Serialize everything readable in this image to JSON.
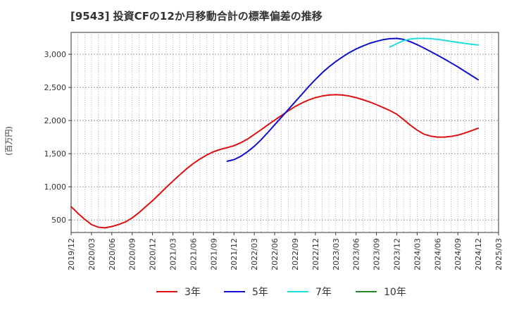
{
  "chart_data": {
    "type": "line",
    "title": "[9543]  投資CFの12か月移動合計の標準偏差の推移",
    "ylabel": "(百万円)",
    "ylim": [
      310,
      3330
    ],
    "yticks": [
      500,
      1000,
      1500,
      2000,
      2500,
      3000
    ],
    "ytick_labels": [
      "500",
      "1,000",
      "1,500",
      "2,000",
      "2,500",
      "3,000"
    ],
    "xticks": [
      "2019/12",
      "2020/03",
      "2020/06",
      "2020/09",
      "2020/12",
      "2021/03",
      "2021/06",
      "2021/09",
      "2021/12",
      "2022/03",
      "2022/06",
      "2022/09",
      "2022/12",
      "2023/03",
      "2023/06",
      "2023/09",
      "2023/12",
      "2024/03",
      "2024/06",
      "2024/09",
      "2024/12",
      "2025/03"
    ],
    "grid": true,
    "legend_position": "bottom",
    "series": [
      {
        "name": "3年",
        "color": "#dd1111",
        "points": [
          [
            "2019/12",
            700
          ],
          [
            "2020/01",
            600
          ],
          [
            "2020/02",
            510
          ],
          [
            "2020/03",
            430
          ],
          [
            "2020/04",
            390
          ],
          [
            "2020/05",
            380
          ],
          [
            "2020/06",
            400
          ],
          [
            "2020/07",
            430
          ],
          [
            "2020/08",
            470
          ],
          [
            "2020/09",
            530
          ],
          [
            "2020/10",
            610
          ],
          [
            "2020/11",
            700
          ],
          [
            "2020/12",
            790
          ],
          [
            "2021/01",
            890
          ],
          [
            "2021/02",
            990
          ],
          [
            "2021/03",
            1085
          ],
          [
            "2021/04",
            1180
          ],
          [
            "2021/05",
            1270
          ],
          [
            "2021/06",
            1350
          ],
          [
            "2021/07",
            1420
          ],
          [
            "2021/08",
            1480
          ],
          [
            "2021/09",
            1530
          ],
          [
            "2021/10",
            1565
          ],
          [
            "2021/11",
            1590
          ],
          [
            "2021/12",
            1620
          ],
          [
            "2022/01",
            1665
          ],
          [
            "2022/02",
            1720
          ],
          [
            "2022/03",
            1790
          ],
          [
            "2022/04",
            1860
          ],
          [
            "2022/05",
            1935
          ],
          [
            "2022/06",
            2005
          ],
          [
            "2022/07",
            2075
          ],
          [
            "2022/08",
            2145
          ],
          [
            "2022/09",
            2210
          ],
          [
            "2022/10",
            2265
          ],
          [
            "2022/11",
            2310
          ],
          [
            "2022/12",
            2345
          ],
          [
            "2023/01",
            2370
          ],
          [
            "2023/02",
            2385
          ],
          [
            "2023/03",
            2390
          ],
          [
            "2023/04",
            2385
          ],
          [
            "2023/05",
            2370
          ],
          [
            "2023/06",
            2345
          ],
          [
            "2023/07",
            2315
          ],
          [
            "2023/08",
            2280
          ],
          [
            "2023/09",
            2240
          ],
          [
            "2023/10",
            2195
          ],
          [
            "2023/11",
            2150
          ],
          [
            "2023/12",
            2095
          ],
          [
            "2024/01",
            2015
          ],
          [
            "2024/02",
            1930
          ],
          [
            "2024/03",
            1855
          ],
          [
            "2024/04",
            1795
          ],
          [
            "2024/05",
            1765
          ],
          [
            "2024/06",
            1750
          ],
          [
            "2024/07",
            1750
          ],
          [
            "2024/08",
            1760
          ],
          [
            "2024/09",
            1780
          ],
          [
            "2024/10",
            1810
          ],
          [
            "2024/11",
            1845
          ],
          [
            "2024/12",
            1885
          ]
        ]
      },
      {
        "name": "5年",
        "color": "#1111cc",
        "points": [
          [
            "2021/11",
            1385
          ],
          [
            "2021/12",
            1410
          ],
          [
            "2022/01",
            1460
          ],
          [
            "2022/02",
            1530
          ],
          [
            "2022/03",
            1610
          ],
          [
            "2022/04",
            1710
          ],
          [
            "2022/05",
            1820
          ],
          [
            "2022/06",
            1935
          ],
          [
            "2022/07",
            2050
          ],
          [
            "2022/08",
            2165
          ],
          [
            "2022/09",
            2280
          ],
          [
            "2022/10",
            2395
          ],
          [
            "2022/11",
            2510
          ],
          [
            "2022/12",
            2620
          ],
          [
            "2023/01",
            2720
          ],
          [
            "2023/02",
            2810
          ],
          [
            "2023/03",
            2890
          ],
          [
            "2023/04",
            2960
          ],
          [
            "2023/05",
            3025
          ],
          [
            "2023/06",
            3080
          ],
          [
            "2023/07",
            3125
          ],
          [
            "2023/08",
            3165
          ],
          [
            "2023/09",
            3195
          ],
          [
            "2023/10",
            3220
          ],
          [
            "2023/11",
            3235
          ],
          [
            "2023/12",
            3240
          ],
          [
            "2024/01",
            3225
          ],
          [
            "2024/02",
            3190
          ],
          [
            "2024/03",
            3145
          ],
          [
            "2024/04",
            3095
          ],
          [
            "2024/05",
            3040
          ],
          [
            "2024/06",
            2985
          ],
          [
            "2024/07",
            2930
          ],
          [
            "2024/08",
            2870
          ],
          [
            "2024/09",
            2810
          ],
          [
            "2024/10",
            2745
          ],
          [
            "2024/11",
            2680
          ],
          [
            "2024/12",
            2615
          ]
        ]
      },
      {
        "name": "7年",
        "color": "#22dddd",
        "points": [
          [
            "2023/11",
            3110
          ],
          [
            "2023/12",
            3160
          ],
          [
            "2024/01",
            3205
          ],
          [
            "2024/02",
            3230
          ],
          [
            "2024/03",
            3240
          ],
          [
            "2024/04",
            3240
          ],
          [
            "2024/05",
            3235
          ],
          [
            "2024/06",
            3225
          ],
          [
            "2024/07",
            3210
          ],
          [
            "2024/08",
            3195
          ],
          [
            "2024/09",
            3180
          ],
          [
            "2024/10",
            3165
          ],
          [
            "2024/11",
            3150
          ],
          [
            "2024/12",
            3140
          ]
        ]
      },
      {
        "name": "10年",
        "color": "#228822",
        "points": []
      }
    ]
  }
}
